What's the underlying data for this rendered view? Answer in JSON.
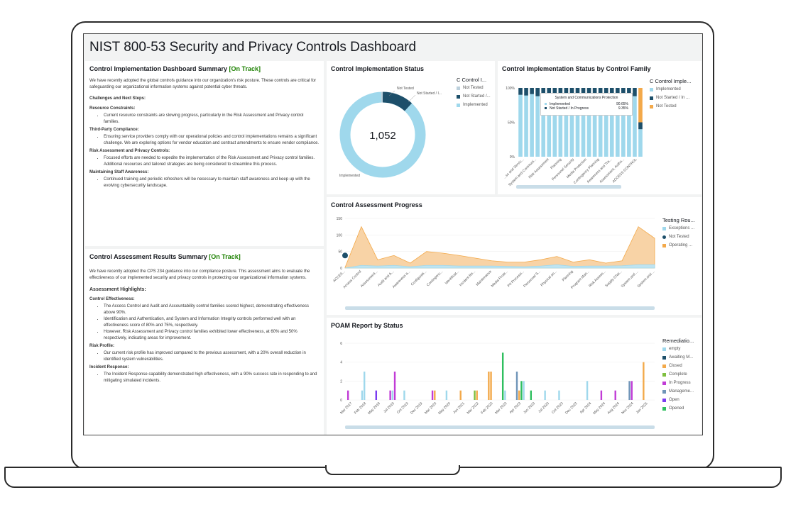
{
  "dashboard": {
    "title": "NIST 800-53 Security and Privacy Controls Dashboard"
  },
  "colors": {
    "implemented": "#9fd8ec",
    "in_progress": "#1d4f6a",
    "not_tested": "#bcd0dc",
    "orange": "#f3a94a",
    "green": "#1d8102"
  },
  "impl_summary": {
    "title": "Control Implementation Dashboard Summary",
    "status": "[On Track]",
    "intro": "We have recently adopted the global controls guidance into our organization's risk posture. These controls are critical for safeguarding our organizational information systems against potential cyber threats.",
    "challenges_heading": "Challenges and Next Steps:",
    "sections": [
      {
        "heading": "Resource Constraints:",
        "bullets": [
          "Current resource constraints are slowing progress, particularly in the Risk Assessment and Privacy control families."
        ]
      },
      {
        "heading": "Third-Party Compliance:",
        "bullets": [
          "Ensuring service providers comply with our operational policies and control implementations remains a significant challenge. We are exploring options for vendor education and contract amendments to ensure vendor compliance."
        ]
      },
      {
        "heading": "Risk Assessment and Privacy Controls:",
        "bullets": [
          "Focused efforts are needed to expedite the implementation of the Risk Assessment and Privacy control families. Additional resources and tailored strategies are being considered to streamline this process."
        ]
      },
      {
        "heading": "Maintaining Staff Awareness:",
        "bullets": [
          "Continued training and periodic refreshers will be necessary to maintain staff awareness and keep up with the evolving cybersecurity landscape."
        ]
      }
    ]
  },
  "assess_summary": {
    "title": "Control Assessment Results Summary",
    "status": "[On Track]",
    "intro": "We have recently adopted the CPS 234 guidance into our compliance posture. This assessment aims to evaluate the effectiveness of our implemented security and privacy controls in protecting our organizational information systems.",
    "highlights_heading": "Assessment Highlights:",
    "sections": [
      {
        "heading": "Control Effectiveness:",
        "bullets": [
          "The Access Control and Audit and Accountability control families scored highest, demonstrating effectiveness above 90%.",
          "Identification and Authentication, and System and Information Integrity controls performed well with an effectiveness score of 80% and 75%, respectively.",
          "However, Risk Assessment and Privacy control families exhibited lower effectiveness, at 60% and 50% respectively, indicating areas for improvement."
        ]
      },
      {
        "heading": "Risk Profile:",
        "bullets": [
          "Our current risk profile has improved compared to the previous assessment, with a 20% overall reduction in identified system vulnerabilities."
        ]
      },
      {
        "heading": "Incident Response:",
        "bullets": [
          "The Incident Response capability demonstrated high effectiveness, with a 90% success rate in responding to and mitigating simulated incidents."
        ]
      }
    ]
  },
  "impl_status": {
    "title": "Control Implementation Status",
    "center_value": "1,052",
    "legend_title": "C Control I...",
    "legend": [
      "Not Tested",
      "Not Started /...",
      "Implemented"
    ],
    "label_not_tested": "Not Tested",
    "label_not_started": "Not Started / I...",
    "label_implemented": "Implemented",
    "chart_data": {
      "type": "pie",
      "categories": [
        "Implemented",
        "Not Started / In Progress",
        "Not Tested"
      ],
      "values": [
        0.88,
        0.11,
        0.01
      ]
    }
  },
  "family_status": {
    "title": "Control Implementation Status by Control Family",
    "legend_title": "C Control Imple...",
    "legend": [
      "Implemented",
      "Not Started / In ...",
      "Not Tested"
    ],
    "y_ticks": [
      "100%",
      "50%",
      "0%"
    ],
    "x_labels": [
      "...ss and Servic...",
      "System and Communi...",
      "Risk Assessment",
      "Planning",
      "Personnel Security",
      "Media Protection",
      "Contingency Planning",
      "Awareness and Tra...",
      "Assessment, Autho...",
      "ACCESS CONTROL"
    ],
    "tooltip": {
      "title": "System and Communications Protection",
      "rows": [
        {
          "label": "Implemented",
          "value": "90.65%"
        },
        {
          "label": "Not Started / In Progress",
          "value": "9.35%"
        }
      ]
    },
    "chart_data": {
      "type": "bar",
      "stacked": true,
      "ylim": [
        0,
        100
      ],
      "series": [
        {
          "name": "Implemented",
          "values": [
            90,
            89,
            91,
            88,
            90,
            90,
            91,
            90,
            89,
            92,
            90,
            91,
            88,
            90,
            91,
            90,
            89,
            90,
            91,
            90,
            88,
            40
          ]
        },
        {
          "name": "Not Started / In Progress",
          "values": [
            10,
            11,
            9,
            12,
            10,
            10,
            9,
            10,
            11,
            8,
            10,
            9,
            12,
            10,
            9,
            10,
            11,
            10,
            9,
            10,
            12,
            10
          ]
        },
        {
          "name": "Not Tested",
          "values": [
            0,
            0,
            0,
            0,
            0,
            0,
            0,
            0,
            0,
            0,
            0,
            0,
            0,
            0,
            0,
            0,
            0,
            0,
            0,
            0,
            0,
            50
          ]
        }
      ]
    }
  },
  "assessment_progress": {
    "title": "Control Assessment Progress",
    "legend_title": "Testing Rou...",
    "legend": [
      "Exceptions ...",
      "Not Tested",
      "Operating ..."
    ],
    "y_ticks": [
      "150",
      "100",
      "50",
      "0"
    ],
    "x_labels": [
      "ACCES...",
      "Access Control",
      "Assessment...",
      "Audit and A...",
      "Awareness a...",
      "Configurati...",
      "Contingenc...",
      "Identificat...",
      "Incident Re...",
      "Maintenance",
      "Media Prote...",
      "PII Processi...",
      "Personnel S...",
      "Physical an...",
      "Planning",
      "Program Man...",
      "Risk Assess...",
      "Supply Chai...",
      "System and ...",
      "System and ..."
    ],
    "chart_data": {
      "type": "area",
      "ylim": [
        0,
        150
      ],
      "x": [
        "ACCES...",
        "Access Control",
        "Assessment...",
        "Audit and A...",
        "Awareness a...",
        "Configurati...",
        "Contingenc...",
        "Identificat...",
        "Incident Re...",
        "Maintenance",
        "Media Prote...",
        "PII Processi...",
        "Personnel S...",
        "Physical an...",
        "Planning",
        "Program Man...",
        "Risk Assess...",
        "Supply Chai...",
        "System and ...",
        "System and ..."
      ],
      "series": [
        {
          "name": "Operating ...",
          "values": [
            2,
            125,
            25,
            38,
            15,
            50,
            45,
            38,
            30,
            22,
            18,
            18,
            25,
            35,
            18,
            25,
            15,
            22,
            125,
            90
          ]
        },
        {
          "name": "Exceptions ...",
          "values": [
            0,
            8,
            6,
            8,
            4,
            8,
            8,
            6,
            6,
            6,
            5,
            4,
            6,
            10,
            5,
            6,
            6,
            7,
            10,
            10
          ]
        },
        {
          "name": "Not Tested",
          "values": [
            38,
            null,
            null,
            null,
            null,
            null,
            null,
            null,
            null,
            null,
            null,
            null,
            null,
            null,
            null,
            null,
            null,
            null,
            null,
            null
          ]
        }
      ]
    }
  },
  "poam": {
    "title": "POAM Report by Status",
    "legend_title": "Remediatio...",
    "legend": [
      "empty",
      "Awaiting M...",
      "Closed",
      "Complete",
      "In Progress",
      "Manageme...",
      "Open",
      "Opened"
    ],
    "y_ticks": [
      "6",
      "4",
      "2",
      "0"
    ],
    "x_labels": [
      "Mar 2017",
      "Feb 2018",
      "May 2018",
      "Jul 2019",
      "Oct 2019",
      "Dec 2019",
      "Mar 2020",
      "May 2020",
      "Jun 2021",
      "Mar 2022",
      "Feb 2023",
      "Mar 2023",
      "Apr 2023",
      "Jun 2023",
      "Jul 2023",
      "Oct 2023",
      "Dec 2023",
      "Apr 2024",
      "May 2024",
      "Aug 2024",
      "Nov 2024",
      "Jan 2025"
    ],
    "chart_data": {
      "type": "bar",
      "bars": [
        {
          "x": "Mar 2017",
          "name": "In Progress",
          "value": 1
        },
        {
          "x": "Feb 2018",
          "name": "empty",
          "value": 1
        },
        {
          "x": "Feb 2018",
          "name": "empty",
          "value": 3
        },
        {
          "x": "May 2018",
          "name": "Open",
          "value": 1
        },
        {
          "x": "Jul 2019",
          "name": "In Progress",
          "value": 1
        },
        {
          "x": "Jul 2019",
          "name": "empty",
          "value": 1
        },
        {
          "x": "Jul 2019",
          "name": "In Progress",
          "value": 3
        },
        {
          "x": "Oct 2019",
          "name": "empty",
          "value": 1
        },
        {
          "x": "Mar 2020",
          "name": "In Progress",
          "value": 1
        },
        {
          "x": "Mar 2020",
          "name": "Closed",
          "value": 1
        },
        {
          "x": "May 2020",
          "name": "empty",
          "value": 1
        },
        {
          "x": "Jun 2021",
          "name": "Closed",
          "value": 1
        },
        {
          "x": "Mar 2022",
          "name": "Complete",
          "value": 1
        },
        {
          "x": "Mar 2022",
          "name": "Closed",
          "value": 1
        },
        {
          "x": "Feb 2023",
          "name": "Closed",
          "value": 3
        },
        {
          "x": "Feb 2023",
          "name": "Closed",
          "value": 3
        },
        {
          "x": "Mar 2023",
          "name": "Opened",
          "value": 5
        },
        {
          "x": "Mar 2023",
          "name": "empty",
          "value": 1
        },
        {
          "x": "Apr 2023",
          "name": "Manageme...",
          "value": 3
        },
        {
          "x": "Apr 2023",
          "name": "Closed",
          "value": 1
        },
        {
          "x": "Apr 2023",
          "name": "Opened",
          "value": 2
        },
        {
          "x": "Apr 2023",
          "name": "empty",
          "value": 2
        },
        {
          "x": "Jun 2023",
          "name": "Opened",
          "value": 1
        },
        {
          "x": "Jul 2023",
          "name": "empty",
          "value": 1
        },
        {
          "x": "Oct 2023",
          "name": "empty",
          "value": 1
        },
        {
          "x": "Apr 2024",
          "name": "empty",
          "value": 2
        },
        {
          "x": "May 2024",
          "name": "In Progress",
          "value": 1
        },
        {
          "x": "Aug 2024",
          "name": "In Progress",
          "value": 1
        },
        {
          "x": "Nov 2024",
          "name": "Manageme...",
          "value": 2
        },
        {
          "x": "Nov 2024",
          "name": "In Progress",
          "value": 2
        },
        {
          "x": "Jan 2025",
          "name": "Closed",
          "value": 4
        }
      ]
    }
  }
}
